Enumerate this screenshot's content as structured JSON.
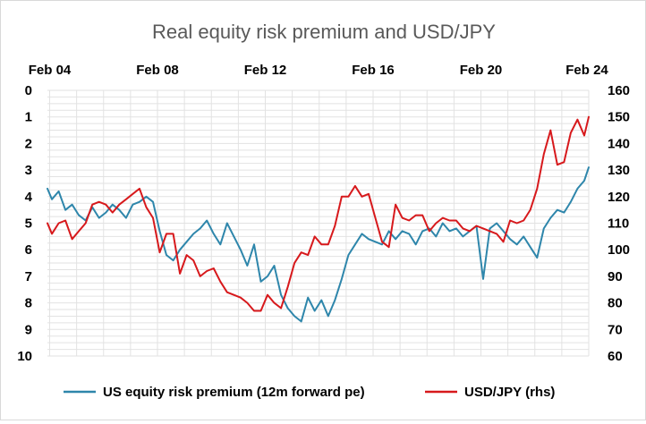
{
  "chart_data": {
    "type": "line",
    "title": "Real equity risk premium and USD/JPY",
    "x_tick_labels": [
      "Feb 04",
      "Feb 08",
      "Feb 12",
      "Feb 16",
      "Feb 20",
      "Feb 24"
    ],
    "x_tick_dates": [
      "2004-02",
      "2008-02",
      "2012-02",
      "2016-02",
      "2020-02",
      "2024-02"
    ],
    "x_range": [
      "2004-01",
      "2024-02"
    ],
    "y_left": {
      "ticks": [
        0,
        1,
        2,
        3,
        4,
        5,
        6,
        7,
        8,
        9,
        10
      ],
      "range": [
        0,
        10
      ],
      "inverted": true
    },
    "y_right": {
      "ticks": [
        160,
        150,
        140,
        130,
        120,
        110,
        100,
        90,
        80,
        70,
        60
      ],
      "range": [
        60,
        160
      ]
    },
    "grid": true,
    "legend_position": "bottom",
    "series": [
      {
        "name": "US equity risk premium (12m forward pe)",
        "axis": "left",
        "color": "#2E86AB",
        "x": [
          "2004-01",
          "2004-03",
          "2004-06",
          "2004-09",
          "2004-12",
          "2005-03",
          "2005-06",
          "2005-09",
          "2005-12",
          "2006-03",
          "2006-06",
          "2006-09",
          "2006-12",
          "2007-03",
          "2007-06",
          "2007-09",
          "2007-12",
          "2008-03",
          "2008-06",
          "2008-09",
          "2008-12",
          "2009-03",
          "2009-06",
          "2009-09",
          "2009-12",
          "2010-03",
          "2010-06",
          "2010-09",
          "2010-12",
          "2011-03",
          "2011-06",
          "2011-09",
          "2011-12",
          "2012-03",
          "2012-06",
          "2012-09",
          "2012-12",
          "2013-03",
          "2013-06",
          "2013-09",
          "2013-12",
          "2014-03",
          "2014-06",
          "2014-09",
          "2014-12",
          "2015-03",
          "2015-06",
          "2015-09",
          "2015-12",
          "2016-03",
          "2016-06",
          "2016-09",
          "2016-12",
          "2017-03",
          "2017-06",
          "2017-09",
          "2017-12",
          "2018-03",
          "2018-06",
          "2018-09",
          "2018-12",
          "2019-03",
          "2019-06",
          "2019-09",
          "2019-12",
          "2020-03",
          "2020-06",
          "2020-09",
          "2020-12",
          "2021-03",
          "2021-06",
          "2021-09",
          "2021-12",
          "2022-03",
          "2022-06",
          "2022-09",
          "2022-12",
          "2023-03",
          "2023-06",
          "2023-09",
          "2023-12",
          "2024-02"
        ],
        "values": [
          3.7,
          4.1,
          3.8,
          4.5,
          4.3,
          4.7,
          4.9,
          4.4,
          4.8,
          4.6,
          4.3,
          4.5,
          4.8,
          4.3,
          4.2,
          4.0,
          4.2,
          5.3,
          6.2,
          6.4,
          6.0,
          5.7,
          5.4,
          5.2,
          4.9,
          5.4,
          5.8,
          5.0,
          5.5,
          6.0,
          6.6,
          5.8,
          7.2,
          7.0,
          6.6,
          7.7,
          8.2,
          8.5,
          8.7,
          7.8,
          8.3,
          7.9,
          8.5,
          7.9,
          7.1,
          6.2,
          5.8,
          5.4,
          5.6,
          5.7,
          5.8,
          5.3,
          5.6,
          5.3,
          5.4,
          5.8,
          5.3,
          5.2,
          5.5,
          5.0,
          5.3,
          5.2,
          5.5,
          5.3,
          5.1,
          7.1,
          5.2,
          5.0,
          5.3,
          5.6,
          5.8,
          5.5,
          5.9,
          6.3,
          5.2,
          4.8,
          4.5,
          4.6,
          4.2,
          3.7,
          3.4,
          2.9
        ]
      },
      {
        "name": "USD/JPY (rhs)",
        "axis": "right",
        "color": "#D7191C",
        "x": [
          "2004-01",
          "2004-03",
          "2004-06",
          "2004-09",
          "2004-12",
          "2005-03",
          "2005-06",
          "2005-09",
          "2005-12",
          "2006-03",
          "2006-06",
          "2006-09",
          "2006-12",
          "2007-03",
          "2007-06",
          "2007-09",
          "2007-12",
          "2008-03",
          "2008-06",
          "2008-09",
          "2008-12",
          "2009-03",
          "2009-06",
          "2009-09",
          "2009-12",
          "2010-03",
          "2010-06",
          "2010-09",
          "2010-12",
          "2011-03",
          "2011-06",
          "2011-09",
          "2011-12",
          "2012-03",
          "2012-06",
          "2012-09",
          "2012-12",
          "2013-03",
          "2013-06",
          "2013-09",
          "2013-12",
          "2014-03",
          "2014-06",
          "2014-09",
          "2014-12",
          "2015-03",
          "2015-06",
          "2015-09",
          "2015-12",
          "2016-03",
          "2016-06",
          "2016-09",
          "2016-12",
          "2017-03",
          "2017-06",
          "2017-09",
          "2017-12",
          "2018-03",
          "2018-06",
          "2018-09",
          "2018-12",
          "2019-03",
          "2019-06",
          "2019-09",
          "2019-12",
          "2020-03",
          "2020-06",
          "2020-09",
          "2020-12",
          "2021-03",
          "2021-06",
          "2021-09",
          "2021-12",
          "2022-03",
          "2022-06",
          "2022-09",
          "2022-12",
          "2023-03",
          "2023-06",
          "2023-09",
          "2023-12",
          "2024-02"
        ],
        "values": [
          110,
          106,
          110,
          111,
          104,
          107,
          110,
          117,
          118,
          117,
          114,
          117,
          119,
          121,
          123,
          116,
          112,
          99,
          106,
          106,
          91,
          98,
          96,
          90,
          92,
          93,
          88,
          84,
          83,
          82,
          80,
          77,
          77,
          83,
          80,
          78,
          86,
          95,
          99,
          98,
          105,
          102,
          102,
          109,
          120,
          120,
          124,
          120,
          121,
          112,
          103,
          101,
          117,
          112,
          111,
          113,
          113,
          107,
          110,
          112,
          111,
          111,
          108,
          107,
          109,
          108,
          107,
          106,
          103,
          111,
          110,
          111,
          115,
          123,
          136,
          145,
          132,
          133,
          144,
          149,
          143,
          150
        ]
      }
    ]
  }
}
